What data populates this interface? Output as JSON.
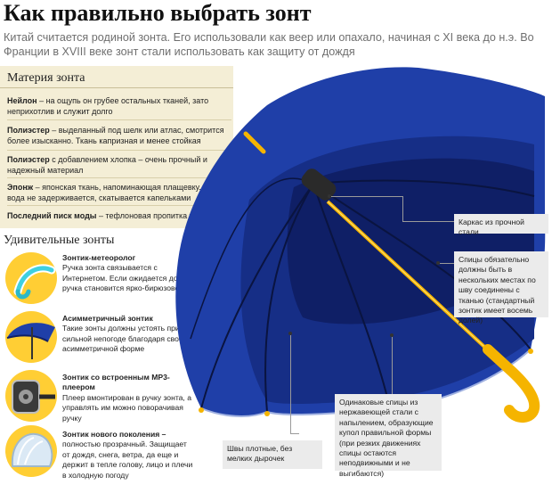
{
  "header": {
    "title": "Как правильно выбрать зонт",
    "subtitle": "Китай считается родиной зонта. Его использовали как веер или опахало, начиная с XI века до н.э. Во Франции в XVIII веке зонт стали использовать как защиту от дождя"
  },
  "materials": {
    "title": "Материя зонта",
    "items": [
      {
        "name": "Нейлон",
        "text": " – на ощупь он грубее остальных тканей, зато неприхотлив и служит долго"
      },
      {
        "name": "Полиэстер",
        "text": " – выделанный под шелк или атлас, смотрится более изысканно. Ткань капризная и менее стойкая"
      },
      {
        "name": "Полиэстер",
        "text": " с добавлением хлопка – очень прочный и надежный материал"
      },
      {
        "name": "Эпонж",
        "text": " – японская ткань, напоминающая плащевку. На ней вода не задерживается, скатывается капельками"
      },
      {
        "name": "Последний писк моды",
        "text": " – тефлоновая пропитка ткани"
      }
    ]
  },
  "amazing": {
    "title": "Удивительные зонты",
    "items": [
      {
        "name": "Зонтик-метеоролог",
        "text": "Ручка зонта связывается с Интернетом. Если ожидается дождь, ручка становится ярко-бирюзовой",
        "icon": "weather-umbrella-icon"
      },
      {
        "name": "Асимметричный зонтик",
        "text": "Такие зонты должны устоять при сильной непогоде благодаря своей асимметричной форме",
        "icon": "asymmetric-umbrella-icon"
      },
      {
        "name": "Зонтик со встроенным MP3-плеером",
        "text": "Плеер вмонтирован в ручку зонта, а управлять им можно поворачивая ручку",
        "icon": "mp3-player-icon"
      },
      {
        "name": "Зонтик нового поколения –",
        "text": "полностью прозрачный. Защищает от дождя, снега, ветра, да еще и держит в тепле голову, лицо и плечи в холодную погоду",
        "icon": "bubble-umbrella-icon"
      }
    ]
  },
  "callouts": {
    "frame": "Каркас из прочной стали",
    "spokes": "Спицы обязательно должны быть в нескольких местах по шву соединены с тканью (стандартный зонтик имеет восемь долей)",
    "seams": "Швы плотные, без мелких дырочек",
    "steel": "Одинаковые спицы из нержавеющей стали с напылением, образующие купол правильной формы (при резких движениях спицы остаются неподвижными и не выгибаются)"
  },
  "colors": {
    "umbrella": "#1f3fa8",
    "umbrella_dark": "#0f1f66",
    "handle": "#f5b400",
    "panel": "#f4eed6",
    "callout_bg": "#ebebeb"
  }
}
